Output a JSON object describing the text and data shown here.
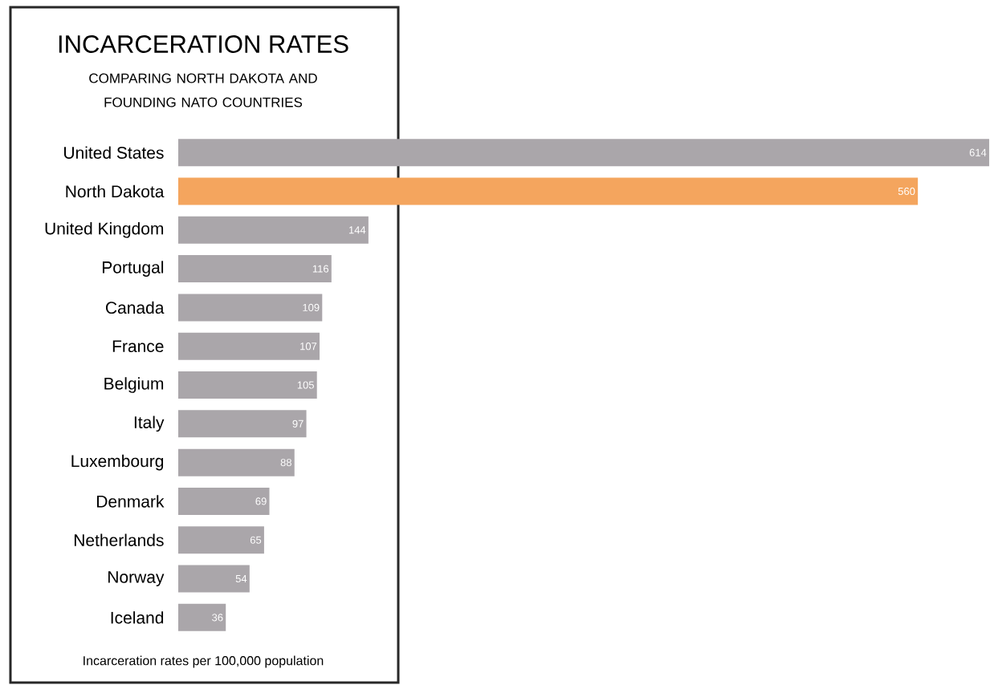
{
  "chart_data": {
    "type": "bar",
    "orientation": "horizontal",
    "title": "INCARCERATION RATES",
    "subtitle": "COMPARING NORTH DAKOTA AND FOUNDING NATO COUNTRIES",
    "categories": [
      "United States",
      "North Dakota",
      "United Kingdom",
      "Portugal",
      "Canada",
      "France",
      "Belgium",
      "Italy",
      "Luxembourg",
      "Denmark",
      "Netherlands",
      "Norway",
      "Iceland"
    ],
    "values": [
      614,
      560,
      144,
      116,
      109,
      107,
      105,
      97,
      88,
      69,
      65,
      54,
      36
    ],
    "colors": [
      "#aaa6aa",
      "#f4a55e",
      "#aaa6aa",
      "#aaa6aa",
      "#aaa6aa",
      "#aaa6aa",
      "#aaa6aa",
      "#aaa6aa",
      "#aaa6aa",
      "#aaa6aa",
      "#aaa6aa",
      "#aaa6aa",
      "#aaa6aa"
    ],
    "data_labels": true,
    "annotations": [
      "Incarceration rates per 100,000 population"
    ]
  }
}
